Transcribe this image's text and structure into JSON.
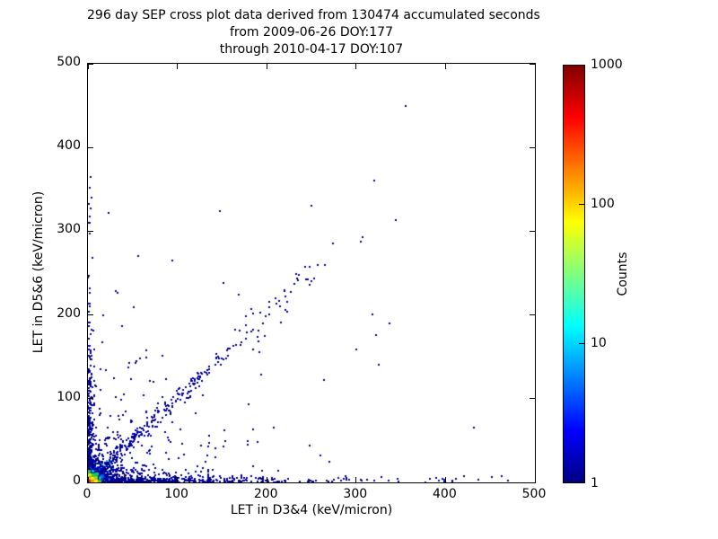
{
  "title": {
    "line1": "296 day SEP cross plot data derived from 130474 accumulated seconds",
    "line2": "from 2009-06-26 DOY:177",
    "line3": "through 2010-04-17 DOY:107"
  },
  "chart_data": {
    "type": "heatmap",
    "subtype": "2d-histogram cross plot (log-color scatter density)",
    "xlabel": "LET in D3&4 (keV/micron)",
    "ylabel": "LET in D5&6 (keV/micron)",
    "xlim": [
      0,
      500
    ],
    "ylim": [
      0,
      500
    ],
    "x_ticks": [
      0,
      100,
      200,
      300,
      400,
      500
    ],
    "y_ticks": [
      0,
      100,
      200,
      300,
      400,
      500
    ],
    "grid": false,
    "background": "#ffffff",
    "colorbar": {
      "label": "Counts",
      "scale": "log",
      "min": 1,
      "max": 1000,
      "ticks": [
        1,
        10,
        100,
        1000
      ],
      "minor_tick_values": [
        10,
        100
      ],
      "colormap": "jet",
      "gradient_stops": [
        {
          "color": "#000080",
          "pos": 0
        },
        {
          "color": "#0000ff",
          "pos": 12.5
        },
        {
          "color": "#00ffff",
          "pos": 37.5
        },
        {
          "color": "#ffff00",
          "pos": 62.5
        },
        {
          "color": "#ff0000",
          "pos": 87.5
        },
        {
          "color": "#800000",
          "pos": 100
        }
      ]
    },
    "render": {
      "seed": 20090626,
      "point_size": 2,
      "base_color": "#000080",
      "core_cells": [
        {
          "x": 0,
          "y": 0,
          "w": 3,
          "h": 3,
          "color": "#ee2200"
        },
        {
          "x": 3,
          "y": 0,
          "w": 4,
          "h": 3,
          "color": "#ff9900"
        },
        {
          "x": 0,
          "y": 3,
          "w": 3,
          "h": 4,
          "color": "#ffaa00"
        },
        {
          "x": 3,
          "y": 3,
          "w": 4,
          "h": 4,
          "color": "#ffee00"
        },
        {
          "x": 7,
          "y": 0,
          "w": 4,
          "h": 4,
          "color": "#ffee00"
        },
        {
          "x": 0,
          "y": 7,
          "w": 4,
          "h": 4,
          "color": "#ccee00"
        },
        {
          "x": 7,
          "y": 4,
          "w": 4,
          "h": 4,
          "color": "#88dd00"
        },
        {
          "x": 4,
          "y": 7,
          "w": 4,
          "h": 4,
          "color": "#44cc22"
        },
        {
          "x": 8,
          "y": 8,
          "w": 4,
          "h": 4,
          "color": "#00cc88"
        },
        {
          "x": 11,
          "y": 0,
          "w": 4,
          "h": 3,
          "color": "#66cc00"
        },
        {
          "x": 0,
          "y": 11,
          "w": 3,
          "h": 4,
          "color": "#33bb44"
        },
        {
          "x": 12,
          "y": 4,
          "w": 3,
          "h": 3,
          "color": "#00ccaa"
        },
        {
          "x": 4,
          "y": 12,
          "w": 3,
          "h": 3,
          "color": "#00bbdd"
        }
      ],
      "clusters": [
        {
          "type": "radial",
          "n": 1500,
          "scale": 10,
          "max_r": 60,
          "bands": [
            {
              "r": 5,
              "colors": [
                "#ffcc00",
                "#ffee00"
              ]
            },
            {
              "r": 9,
              "colors": [
                "#aadd00",
                "#33bb33"
              ]
            },
            {
              "r": 14,
              "colors": [
                "#00cc99",
                "#00aaff"
              ]
            },
            {
              "r": 21,
              "colors": [
                "#0055ee",
                "#0022cc"
              ]
            },
            {
              "r": 999,
              "colors": [
                "#000099",
                "#000080"
              ]
            }
          ]
        },
        {
          "type": "diag",
          "n": 260,
          "t_min": 12,
          "t_max": 150,
          "t_pow": 1.7,
          "sigma": 3.5,
          "cyan_below": 26,
          "cyan_chance": 0.3,
          "colors": [
            "#000080",
            "#0000bb"
          ],
          "cyan_colors": [
            "#0077ff",
            "#00aaff"
          ]
        },
        {
          "type": "diag",
          "n": 42,
          "t_min": 150,
          "t_max": 268,
          "t_pow": 1.0,
          "sigma": 8,
          "cyan_below": 0,
          "cyan_chance": 0,
          "colors": [
            "#000080",
            "#000099"
          ],
          "cyan_colors": []
        },
        {
          "type": "bandx",
          "n": 500,
          "scale": 95,
          "max": 408,
          "sigma": 3.2,
          "cap": 9,
          "cyan_below": 24,
          "cyan_chance": 0.35,
          "colors": [
            "#000080",
            "#0000aa"
          ],
          "cyan_colors": [
            "#0066ff",
            "#00aaff"
          ]
        },
        {
          "type": "bandx2",
          "n": 150,
          "scale": 42,
          "max": 135,
          "spread": 16,
          "colors": [
            "#000080",
            "#0000bb"
          ]
        },
        {
          "type": "bandy",
          "n": 300,
          "scale": 70,
          "max": 310,
          "sigma": 2.6,
          "cap": 7,
          "cyan_below": 20,
          "cyan_chance": 0.3,
          "colors": [
            "#000080",
            "#0000aa"
          ],
          "cyan_colors": [
            "#0077ff"
          ]
        },
        {
          "type": "fan",
          "n": 220,
          "scale_x": 55,
          "scale_y": 55,
          "max": 270,
          "colors": [
            "#000080",
            "#000099"
          ]
        },
        {
          "type": "uniform",
          "n": 30,
          "x_max": 350,
          "y_max": 230,
          "colors": [
            "#000080"
          ]
        }
      ],
      "outliers": [
        [
          355,
          450
        ],
        [
          320,
          360
        ],
        [
          344,
          313
        ],
        [
          307,
          293
        ],
        [
          305,
          288
        ],
        [
          274,
          285
        ],
        [
          265,
          260
        ],
        [
          250,
          331
        ],
        [
          250,
          240
        ],
        [
          244,
          243
        ],
        [
          235,
          241
        ],
        [
          221,
          222
        ],
        [
          211,
          213
        ],
        [
          203,
          201
        ],
        [
          196,
          190
        ],
        [
          185,
          182
        ],
        [
          170,
          181
        ],
        [
          163,
          163
        ],
        [
          155,
          148
        ],
        [
          148,
          324
        ],
        [
          146,
          150
        ],
        [
          136,
          138
        ],
        [
          126,
          126
        ],
        [
          118,
          117
        ],
        [
          108,
          96
        ],
        [
          129,
          104
        ],
        [
          94,
          265
        ],
        [
          23,
          322
        ],
        [
          152,
          238
        ],
        [
          432,
          65
        ],
        [
          412,
          4
        ],
        [
          421,
          7
        ],
        [
          437,
          3
        ],
        [
          452,
          6
        ],
        [
          463,
          8
        ],
        [
          470,
          2
        ],
        [
          390,
          5
        ],
        [
          3,
          365
        ],
        [
          2,
          352
        ],
        [
          4,
          340
        ],
        [
          1,
          333
        ],
        [
          3,
          327
        ],
        [
          2,
          318
        ]
      ]
    }
  }
}
